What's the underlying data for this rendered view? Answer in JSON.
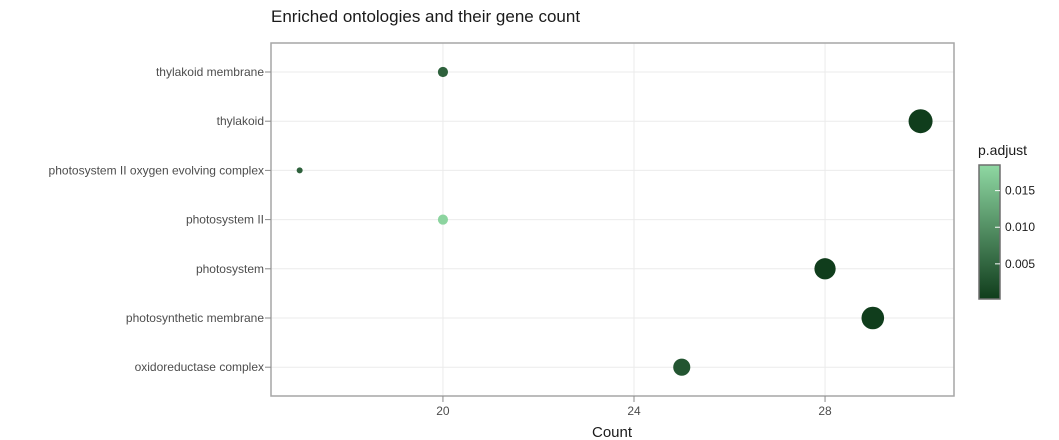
{
  "chart_data": {
    "type": "scatter",
    "title": "Enriched ontologies and their gene count",
    "xlabel": "Count",
    "ylabel": "",
    "xlim": [
      16.4,
      30.7
    ],
    "x_ticks": [
      20,
      24,
      28
    ],
    "grid": true,
    "categories": [
      "thylakoid membrane",
      "thylakoid",
      "photosystem II oxygen evolving complex",
      "photosystem II",
      "photosystem",
      "photosynthetic membrane",
      "oxidoreductase complex"
    ],
    "points": [
      {
        "category": "thylakoid membrane",
        "count": 20,
        "p_adjust": 0.0045
      },
      {
        "category": "thylakoid",
        "count": 30,
        "p_adjust": 0.0001
      },
      {
        "category": "photosystem II oxygen evolving complex",
        "count": 17,
        "p_adjust": 0.0045
      },
      {
        "category": "photosystem II",
        "count": 20,
        "p_adjust": 0.018
      },
      {
        "category": "photosystem",
        "count": 28,
        "p_adjust": 0.0002
      },
      {
        "category": "photosynthetic membrane",
        "count": 29,
        "p_adjust": 0.0001
      },
      {
        "category": "oxidoreductase complex",
        "count": 25,
        "p_adjust": 0.003
      }
    ],
    "legend": {
      "title": "p.adjust",
      "position": "right",
      "range": [
        0.0002,
        0.0185
      ],
      "ticks": [
        "0.015",
        "0.010",
        "0.005"
      ],
      "tick_values": [
        0.015,
        0.01,
        0.005
      ],
      "color_low": "#103d1c",
      "color_high": "#8fd8a3"
    }
  }
}
